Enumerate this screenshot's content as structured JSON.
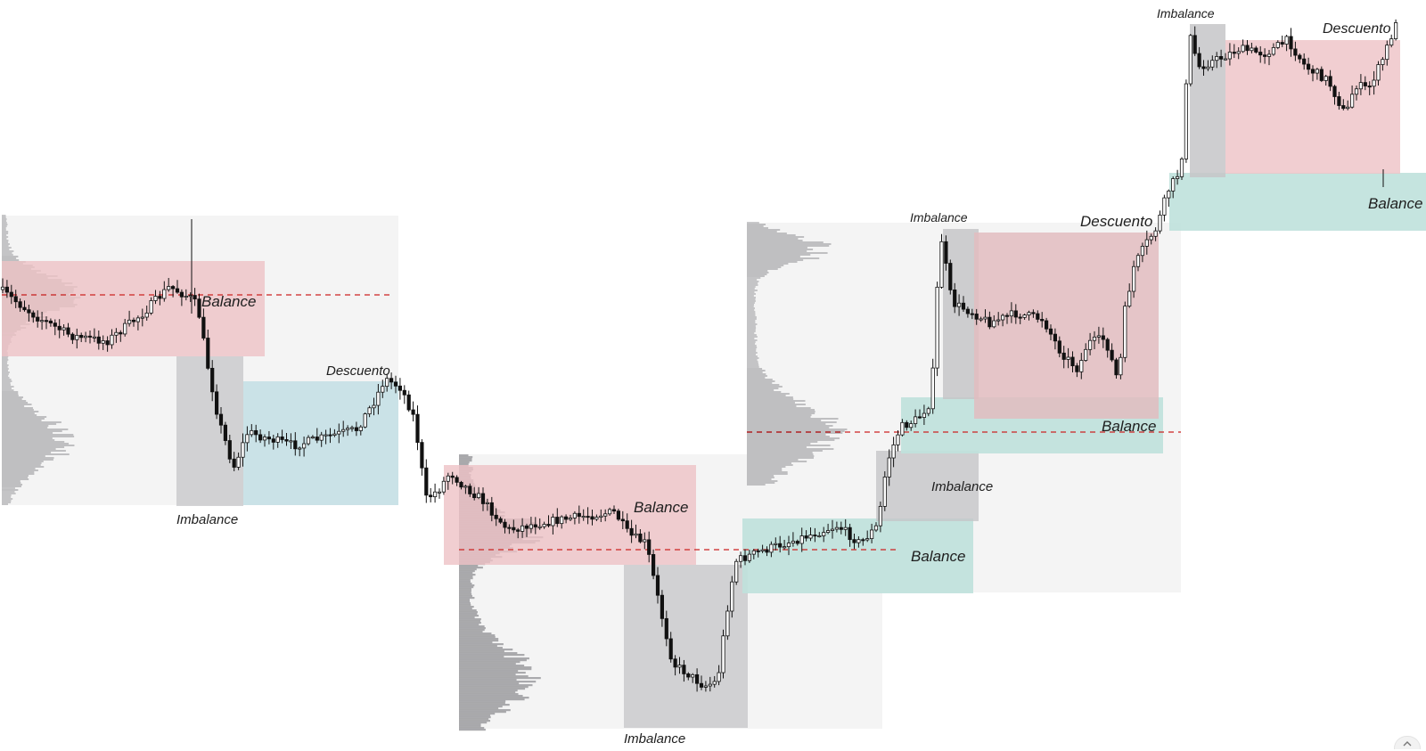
{
  "chart_data": {
    "type": "candlestick",
    "title": "",
    "xlabel": "",
    "ylabel": "",
    "ylim": [
      0,
      843
    ],
    "grid": false,
    "legend": "none",
    "colors": {
      "range_bg": "#f4f4f4",
      "premium": "#eec2c6",
      "discount_blue": "#bfdde4",
      "discount_green": "#bfe1dc",
      "imbalance": "#c6c6c8",
      "profile": "#9c9ca0",
      "poc_line": "#cc2222",
      "candle": "#111111"
    },
    "zone_labels": [
      {
        "text": "Balance",
        "zone": "premium-1"
      },
      {
        "text": "Descuento",
        "zone": "discount-1"
      },
      {
        "text": "Imbalance",
        "zone": "imbalance-1"
      },
      {
        "text": "Balance",
        "zone": "premium-2"
      },
      {
        "text": "Imbalance",
        "zone": "imbalance-2"
      },
      {
        "text": "Balance",
        "zone": "discount-3"
      },
      {
        "text": "Imbalance",
        "zone": "imbalance-3"
      },
      {
        "text": "Imbalance",
        "zone": "imbalance-4"
      },
      {
        "text": "Descuento",
        "zone": "premium-3"
      },
      {
        "text": "Balance",
        "zone": "discount-4"
      },
      {
        "text": "Imbalance",
        "zone": "imbalance-5"
      },
      {
        "text": "Descuento",
        "zone": "premium-4"
      },
      {
        "text": "Balance",
        "zone": "discount-5"
      }
    ],
    "path_points": [
      [
        0,
        325
      ],
      [
        40,
        355
      ],
      [
        80,
        377
      ],
      [
        120,
        383
      ],
      [
        160,
        352
      ],
      [
        190,
        322
      ],
      [
        215,
        335
      ],
      [
        222,
        345
      ],
      [
        232,
        405
      ],
      [
        245,
        470
      ],
      [
        262,
        525
      ],
      [
        278,
        485
      ],
      [
        300,
        492
      ],
      [
        330,
        500
      ],
      [
        360,
        492
      ],
      [
        400,
        482
      ],
      [
        420,
        450
      ],
      [
        432,
        425
      ],
      [
        450,
        435
      ],
      [
        465,
        470
      ],
      [
        478,
        560
      ],
      [
        492,
        550
      ],
      [
        505,
        530
      ],
      [
        520,
        545
      ],
      [
        540,
        560
      ],
      [
        570,
        595
      ],
      [
        600,
        588
      ],
      [
        650,
        580
      ],
      [
        690,
        575
      ],
      [
        705,
        600
      ],
      [
        725,
        610
      ],
      [
        740,
        680
      ],
      [
        755,
        745
      ],
      [
        770,
        755
      ],
      [
        790,
        770
      ],
      [
        805,
        765
      ],
      [
        815,
        690
      ],
      [
        825,
        630
      ],
      [
        850,
        620
      ],
      [
        880,
        610
      ],
      [
        910,
        600
      ],
      [
        940,
        590
      ],
      [
        965,
        610
      ],
      [
        985,
        590
      ],
      [
        995,
        520
      ],
      [
        1010,
        480
      ],
      [
        1030,
        470
      ],
      [
        1045,
        450
      ],
      [
        1055,
        260
      ],
      [
        1068,
        340
      ],
      [
        1090,
        350
      ],
      [
        1110,
        362
      ],
      [
        1140,
        352
      ],
      [
        1170,
        358
      ],
      [
        1190,
        395
      ],
      [
        1210,
        415
      ],
      [
        1220,
        385
      ],
      [
        1240,
        380
      ],
      [
        1255,
        430
      ],
      [
        1262,
        350
      ],
      [
        1272,
        300
      ],
      [
        1285,
        275
      ],
      [
        1298,
        255
      ],
      [
        1310,
        215
      ],
      [
        1325,
        190
      ],
      [
        1330,
        110
      ],
      [
        1335,
        40
      ],
      [
        1345,
        75
      ],
      [
        1370,
        65
      ],
      [
        1390,
        55
      ],
      [
        1420,
        60
      ],
      [
        1445,
        45
      ],
      [
        1465,
        75
      ],
      [
        1490,
        90
      ],
      [
        1510,
        130
      ],
      [
        1520,
        95
      ],
      [
        1535,
        100
      ],
      [
        1550,
        70
      ],
      [
        1565,
        30
      ],
      [
        1572,
        22
      ]
    ]
  },
  "ui": {
    "corner_icon": "expand-icon"
  }
}
